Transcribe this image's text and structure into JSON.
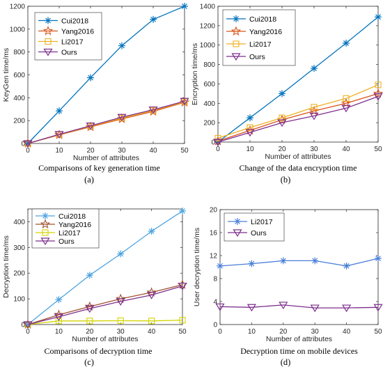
{
  "chart_data": [
    {
      "panel": "(a)",
      "type": "line",
      "caption": "Comparisons of key generation time",
      "xlabel": "Number of attributes",
      "ylabel": "KeyGen time/ms",
      "x": [
        0,
        10,
        20,
        30,
        40,
        50
      ],
      "xlim": [
        0,
        50
      ],
      "ylim": [
        0,
        1200
      ],
      "xticks": [
        0,
        10,
        20,
        30,
        40,
        50
      ],
      "yticks": [
        0,
        200,
        400,
        600,
        800,
        1000,
        1200
      ],
      "legend_position": "top-left",
      "series": [
        {
          "name": "Cui2018",
          "color": "#0072BD",
          "marker": "asterisk",
          "values": [
            0,
            285,
            575,
            855,
            1085,
            1200
          ]
        },
        {
          "name": "Yang2016",
          "color": "#D95319",
          "marker": "star",
          "values": [
            0,
            75,
            145,
            215,
            280,
            360
          ]
        },
        {
          "name": "Li2017",
          "color": "#EDB120",
          "marker": "square",
          "values": [
            0,
            78,
            150,
            222,
            288,
            365
          ]
        },
        {
          "name": "Ours",
          "color": "#7E2F8E",
          "marker": "triangle-down",
          "values": [
            0,
            80,
            155,
            230,
            295,
            370
          ]
        }
      ]
    },
    {
      "panel": "(b)",
      "type": "line",
      "caption": "Change of the data encryption time",
      "xlabel": "Number of attributes",
      "ylabel": "Encryption time/ms",
      "x": [
        0,
        10,
        20,
        30,
        40,
        50
      ],
      "xlim": [
        0,
        50
      ],
      "ylim": [
        0,
        1400
      ],
      "xticks": [
        0,
        10,
        20,
        30,
        40,
        50
      ],
      "yticks": [
        0,
        200,
        400,
        600,
        800,
        1000,
        1200,
        1400
      ],
      "legend_position": "top-left",
      "series": [
        {
          "name": "Cui2018",
          "color": "#0072BD",
          "marker": "asterisk",
          "values": [
            0,
            250,
            500,
            760,
            1020,
            1290
          ]
        },
        {
          "name": "Yang2016",
          "color": "#D95319",
          "marker": "star",
          "values": [
            10,
            120,
            230,
            320,
            400,
            500
          ]
        },
        {
          "name": "Li2017",
          "color": "#EDB120",
          "marker": "square",
          "values": [
            40,
            150,
            250,
            360,
            450,
            590
          ]
        },
        {
          "name": "Ours",
          "color": "#7E2F8E",
          "marker": "triangle-down",
          "values": [
            0,
            100,
            200,
            270,
            350,
            470
          ]
        }
      ]
    },
    {
      "panel": "(c)",
      "type": "line",
      "caption": "Comparisons of decryption time",
      "xlabel": "Number of attributes",
      "ylabel": "Decryption time/ms",
      "x": [
        0,
        10,
        20,
        30,
        40,
        50
      ],
      "xlim": [
        0,
        50
      ],
      "ylim": [
        0,
        450
      ],
      "xticks": [
        0,
        10,
        20,
        30,
        40,
        50
      ],
      "yticks": [
        0,
        100,
        200,
        300,
        400
      ],
      "legend_position": "top-left",
      "series": [
        {
          "name": "Cui2018",
          "color": "#4DA3E0",
          "marker": "asterisk",
          "values": [
            0,
            97,
            192,
            275,
            363,
            442
          ]
        },
        {
          "name": "Yang2016",
          "color": "#A0522D",
          "marker": "star",
          "values": [
            0,
            38,
            70,
            100,
            125,
            155
          ]
        },
        {
          "name": "Li2017",
          "color": "#D4D400",
          "marker": "square",
          "values": [
            0,
            14,
            14,
            15,
            14,
            17
          ]
        },
        {
          "name": "Ours",
          "color": "#7E2F8E",
          "marker": "triangle-down",
          "values": [
            0,
            30,
            62,
            90,
            115,
            150
          ]
        }
      ]
    },
    {
      "panel": "(d)",
      "type": "line",
      "caption": "Decryption time on mobile devices",
      "xlabel": "Number of attributes",
      "ylabel": "User decryption time/ms",
      "x": [
        0,
        10,
        20,
        30,
        40,
        50
      ],
      "xlim": [
        0,
        50
      ],
      "ylim": [
        0,
        20
      ],
      "xticks": [
        0,
        10,
        20,
        30,
        40,
        50
      ],
      "yticks": [
        0,
        4,
        8,
        12,
        16,
        20
      ],
      "legend_position": "top-left",
      "series": [
        {
          "name": "Li2017",
          "color": "#4A7FD9",
          "marker": "asterisk",
          "values": [
            10.2,
            10.6,
            11.1,
            11.1,
            10.2,
            11.5
          ]
        },
        {
          "name": "Ours",
          "color": "#7E2F8E",
          "marker": "triangle-down",
          "values": [
            3.1,
            3.0,
            3.4,
            2.9,
            2.9,
            3.0
          ]
        }
      ]
    }
  ]
}
